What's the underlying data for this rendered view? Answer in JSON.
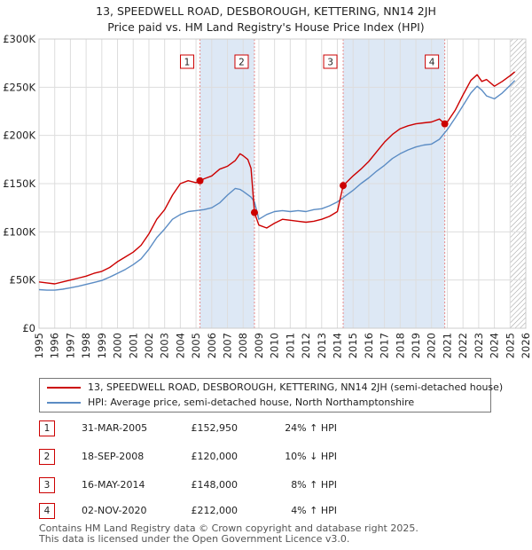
{
  "header": {
    "title_line1": "13, SPEEDWELL ROAD, DESBOROUGH, KETTERING, NN14 2JH",
    "title_line2": "Price paid vs. HM Land Registry's House Price Index (HPI)"
  },
  "chart_data": {
    "type": "line",
    "title": "13, SPEEDWELL ROAD, DESBOROUGH, KETTERING, NN14 2JH",
    "subtitle": "Price paid vs. HM Land Registry's House Price Index (HPI)",
    "xlim": [
      1995,
      2026
    ],
    "ylim": [
      0,
      300000
    ],
    "yticks": [
      0,
      50000,
      100000,
      150000,
      200000,
      250000,
      300000
    ],
    "ytick_labels": [
      "£0",
      "£50K",
      "£100K",
      "£150K",
      "£200K",
      "£250K",
      "£300K"
    ],
    "xticks": [
      "1995",
      "1996",
      "1997",
      "1998",
      "1999",
      "2000",
      "2001",
      "2002",
      "2003",
      "2004",
      "2005",
      "2006",
      "2007",
      "2008",
      "2009",
      "2010",
      "2011",
      "2012",
      "2013",
      "2014",
      "2015",
      "2016",
      "2017",
      "2018",
      "2019",
      "2020",
      "2021",
      "2022",
      "2023",
      "2024",
      "2025",
      "2026"
    ],
    "grid": true,
    "colors": {
      "property": "#cc0000",
      "hpi": "#5b8cc4",
      "shade": "#dde8f5",
      "marker_line": "#e88a8a",
      "hatch": "#999999"
    },
    "hatch_from": 2025.0,
    "series": [
      {
        "name": "13, SPEEDWELL ROAD, DESBOROUGH, KETTERING, NN14 2JH (semi-detached house)",
        "color": "#cc0000",
        "x": [
          1995.0,
          1995.5,
          1996.0,
          1996.5,
          1997.0,
          1997.5,
          1998.0,
          1998.5,
          1999.0,
          1999.5,
          2000.0,
          2000.5,
          2001.0,
          2001.5,
          2002.0,
          2002.5,
          2003.0,
          2003.5,
          2004.0,
          2004.5,
          2005.0,
          2005.25,
          2005.5,
          2006.0,
          2006.5,
          2007.0,
          2007.5,
          2007.8,
          2008.0,
          2008.3,
          2008.5,
          2008.72,
          2009.0,
          2009.5,
          2010.0,
          2010.5,
          2011.0,
          2011.5,
          2012.0,
          2012.5,
          2013.0,
          2013.5,
          2014.0,
          2014.37,
          2014.5,
          2015.0,
          2015.5,
          2016.0,
          2016.5,
          2017.0,
          2017.5,
          2018.0,
          2018.5,
          2019.0,
          2019.5,
          2020.0,
          2020.5,
          2020.84,
          2021.0,
          2021.5,
          2022.0,
          2022.5,
          2022.9,
          2023.2,
          2023.5,
          2024.0,
          2024.5,
          2025.0,
          2025.3
        ],
        "values": [
          48000,
          47000,
          46000,
          48000,
          50000,
          52000,
          54000,
          57000,
          59000,
          63000,
          69000,
          74000,
          79000,
          86000,
          98000,
          113000,
          123000,
          138000,
          150000,
          153000,
          151000,
          152950,
          155000,
          158000,
          165000,
          168000,
          174000,
          181000,
          179000,
          175000,
          166000,
          120000,
          107000,
          104000,
          109000,
          113000,
          112000,
          111000,
          110000,
          111000,
          113000,
          116000,
          121000,
          148000,
          150000,
          158000,
          165000,
          173000,
          183000,
          193000,
          201000,
          207000,
          210000,
          212000,
          213000,
          214000,
          217000,
          212000,
          214000,
          226000,
          242000,
          257000,
          263000,
          256000,
          258000,
          251000,
          256000,
          262000,
          266000
        ]
      },
      {
        "name": "HPI: Average price, semi-detached house, North Northamptonshire",
        "color": "#5b8cc4",
        "x": [
          1995.0,
          1995.5,
          1996.0,
          1996.5,
          1997.0,
          1997.5,
          1998.0,
          1998.5,
          1999.0,
          1999.5,
          2000.0,
          2000.5,
          2001.0,
          2001.5,
          2002.0,
          2002.5,
          2003.0,
          2003.5,
          2004.0,
          2004.5,
          2005.0,
          2005.5,
          2006.0,
          2006.5,
          2007.0,
          2007.5,
          2007.8,
          2008.0,
          2008.5,
          2008.72,
          2009.0,
          2009.5,
          2010.0,
          2010.5,
          2011.0,
          2011.5,
          2012.0,
          2012.5,
          2013.0,
          2013.5,
          2014.0,
          2014.5,
          2015.0,
          2015.5,
          2016.0,
          2016.5,
          2017.0,
          2017.5,
          2018.0,
          2018.5,
          2019.0,
          2019.5,
          2020.0,
          2020.5,
          2021.0,
          2021.5,
          2022.0,
          2022.5,
          2022.9,
          2023.2,
          2023.5,
          2024.0,
          2024.5,
          2025.0,
          2025.3
        ],
        "values": [
          40000,
          39500,
          39500,
          40500,
          42000,
          43500,
          45500,
          47500,
          49500,
          53000,
          57000,
          61000,
          66000,
          72000,
          82000,
          94000,
          103000,
          113000,
          118000,
          121000,
          122000,
          123000,
          125000,
          130000,
          138000,
          145000,
          144000,
          142000,
          136000,
          131000,
          113000,
          118000,
          121000,
          122000,
          121000,
          122000,
          121000,
          123000,
          124000,
          127000,
          131000,
          137000,
          143000,
          150000,
          156000,
          163000,
          169000,
          176000,
          181000,
          185000,
          188000,
          190000,
          191000,
          196000,
          206000,
          218000,
          231000,
          244000,
          251000,
          247000,
          241000,
          238000,
          244000,
          252000,
          257000
        ]
      }
    ],
    "transactions": [
      {
        "label": "1",
        "x": 2005.25,
        "value": 152950
      },
      {
        "label": "2",
        "x": 2008.72,
        "value": 120000
      },
      {
        "label": "3",
        "x": 2014.37,
        "value": 148000
      },
      {
        "label": "4",
        "x": 2020.84,
        "value": 212000
      }
    ]
  },
  "legend": {
    "property_label": "13, SPEEDWELL ROAD, DESBOROUGH, KETTERING, NN14 2JH (semi-detached house)",
    "hpi_label": "HPI: Average price, semi-detached house, North Northamptonshire"
  },
  "transactions": [
    {
      "num": "1",
      "date": "31-MAR-2005",
      "price": "£152,950",
      "hpi": "24% ↑ HPI"
    },
    {
      "num": "2",
      "date": "18-SEP-2008",
      "price": "£120,000",
      "hpi": "10% ↓ HPI"
    },
    {
      "num": "3",
      "date": "16-MAY-2014",
      "price": "£148,000",
      "hpi": "8% ↑ HPI"
    },
    {
      "num": "4",
      "date": "02-NOV-2020",
      "price": "£212,000",
      "hpi": "4% ↑ HPI"
    }
  ],
  "footer": {
    "line1": "Contains HM Land Registry data © Crown copyright and database right 2025.",
    "line2": "This data is licensed under the Open Government Licence v3.0."
  }
}
